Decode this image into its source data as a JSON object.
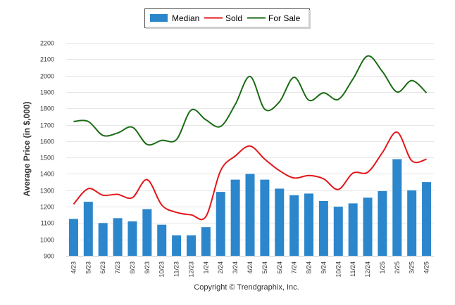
{
  "chart_data": {
    "type": "bar",
    "title": "",
    "xlabel": "",
    "ylabel": "Average Price (in $,000)",
    "ylim": [
      900,
      2200
    ],
    "y_ticks": [
      900,
      1000,
      1100,
      1200,
      1300,
      1400,
      1500,
      1600,
      1700,
      1800,
      1900,
      2000,
      2100,
      2200
    ],
    "grid": true,
    "legend_position": "top-center",
    "categories": [
      "4/23",
      "5/23",
      "6/23",
      "7/23",
      "8/23",
      "9/23",
      "10/23",
      "11/23",
      "12/23",
      "1/24",
      "2/24",
      "3/24",
      "4/24",
      "5/24",
      "6/24",
      "7/24",
      "8/24",
      "9/24",
      "10/24",
      "11/24",
      "12/24",
      "1/25",
      "2/25",
      "3/25",
      "4/25"
    ],
    "series": [
      {
        "name": "Median",
        "type": "bar",
        "color": "#2b86cc",
        "values": [
          1125,
          1230,
          1100,
          1130,
          1110,
          1185,
          1090,
          1025,
          1025,
          1075,
          1290,
          1365,
          1400,
          1365,
          1310,
          1270,
          1280,
          1235,
          1200,
          1220,
          1255,
          1295,
          1490,
          1300,
          1350
        ]
      },
      {
        "name": "Sold",
        "type": "line",
        "color": "#e3171b",
        "values": [
          1215,
          1310,
          1270,
          1275,
          1255,
          1365,
          1210,
          1165,
          1150,
          1140,
          1420,
          1510,
          1570,
          1490,
          1420,
          1375,
          1390,
          1370,
          1305,
          1405,
          1410,
          1530,
          1655,
          1480,
          1490
        ]
      },
      {
        "name": "For Sale",
        "type": "line",
        "color": "#1a6b14",
        "values": [
          1720,
          1720,
          1635,
          1650,
          1685,
          1580,
          1605,
          1610,
          1790,
          1730,
          1690,
          1825,
          1995,
          1795,
          1840,
          1990,
          1850,
          1895,
          1855,
          1980,
          2120,
          2025,
          1900,
          1970,
          1895
        ]
      }
    ]
  },
  "footer": {
    "copyright": "Copyright © Trendgraphix, Inc."
  }
}
